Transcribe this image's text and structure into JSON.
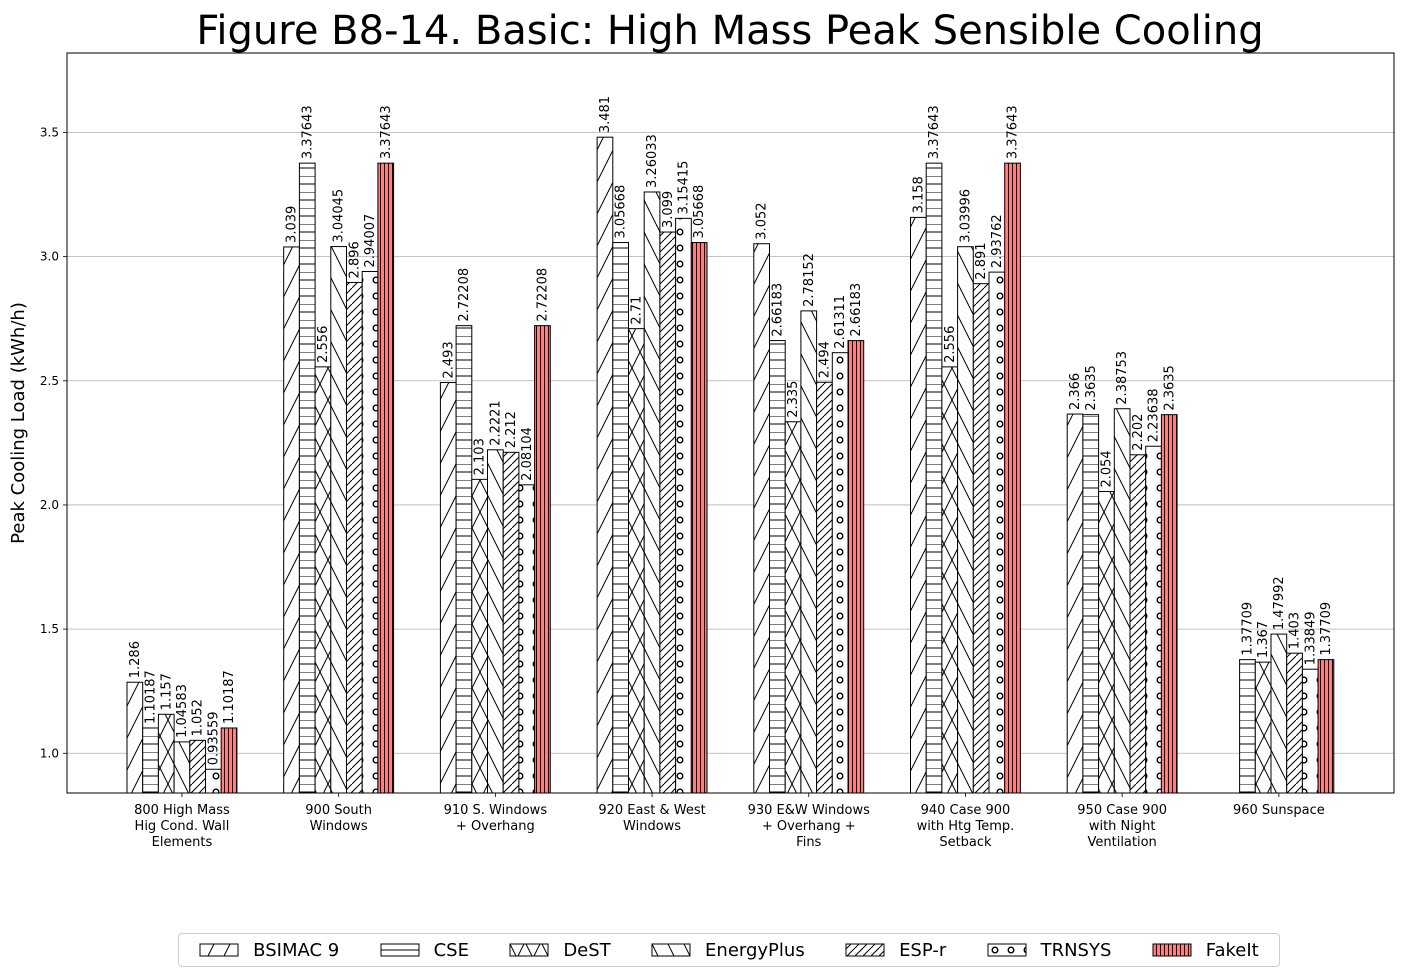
{
  "chart_data": {
    "type": "bar",
    "title": "Figure B8-14.  Basic: High Mass Peak Sensible Cooling",
    "ylabel": "Peak Cooling Load (kWh/h)",
    "xlabel": "",
    "ylim": [
      0.84,
      3.82
    ],
    "yticks": [
      "1.0",
      "1.5",
      "2.0",
      "2.5",
      "3.0",
      "3.5"
    ],
    "grid": "y",
    "legend_position": "bottom-center",
    "categories": [
      [
        "800 High Mass",
        "Hig Cond. Wall",
        "Elements"
      ],
      [
        "900 South",
        "Windows"
      ],
      [
        "910 S. Windows",
        "+ Overhang"
      ],
      [
        "920 East & West",
        "Windows"
      ],
      [
        "930 E&W Windows",
        "+ Overhang +",
        "Fins"
      ],
      [
        "940 Case 900",
        "with Htg Temp.",
        "Setback"
      ],
      [
        "950 Case 900",
        "with Night",
        "Ventilation"
      ],
      [
        "960 Sunspace"
      ]
    ],
    "series": [
      {
        "name": "BSIMAC 9",
        "hatch": "slash",
        "color": "#ffffff",
        "values": [
          1.286,
          3.039,
          2.493,
          3.481,
          3.052,
          3.158,
          2.366,
          null
        ],
        "labels": [
          "1.286",
          "3.039",
          "2.493",
          "3.481",
          "3.052",
          "3.158",
          "2.366",
          ""
        ]
      },
      {
        "name": "CSE",
        "hatch": "horizontal",
        "color": "#ffffff",
        "values": [
          1.10187,
          3.37643,
          2.72208,
          3.05668,
          2.66183,
          3.37643,
          2.3635,
          1.37709
        ],
        "labels": [
          "1.10187",
          "3.37643",
          "2.72208",
          "3.05668",
          "2.66183",
          "3.37643",
          "2.3635",
          "1.37709"
        ]
      },
      {
        "name": "DeST",
        "hatch": "cross",
        "color": "#ffffff",
        "values": [
          1.157,
          2.556,
          2.103,
          2.71,
          2.335,
          2.556,
          2.054,
          1.367
        ],
        "labels": [
          "1.157",
          "2.556",
          "2.103",
          "2.71",
          "2.335",
          "2.556",
          "2.054",
          "1.367"
        ]
      },
      {
        "name": "EnergyPlus",
        "hatch": "backslash",
        "color": "#ffffff",
        "values": [
          1.04583,
          3.04045,
          2.2221,
          3.26033,
          2.78152,
          3.03996,
          2.38753,
          1.47992
        ],
        "labels": [
          "1.04583",
          "3.04045",
          "2.2221",
          "3.26033",
          "2.78152",
          "3.03996",
          "2.38753",
          "1.47992"
        ]
      },
      {
        "name": "ESP-r",
        "hatch": "dense-slash",
        "color": "#ffffff",
        "values": [
          1.052,
          2.896,
          2.212,
          3.099,
          2.494,
          2.891,
          2.202,
          1.403
        ],
        "labels": [
          "1.052",
          "2.896",
          "2.212",
          "3.099",
          "2.494",
          "2.891",
          "2.202",
          "1.403"
        ]
      },
      {
        "name": "TRNSYS",
        "hatch": "circles",
        "color": "#ffffff",
        "values": [
          0.93559,
          2.94007,
          2.08104,
          3.15415,
          2.61311,
          2.93762,
          2.23638,
          1.33849
        ],
        "labels": [
          "0.93559",
          "2.94007",
          "2.08104",
          "3.15415",
          "2.61311",
          "2.93762",
          "2.23638",
          "1.33849"
        ]
      },
      {
        "name": "FakeIt",
        "hatch": "vertical",
        "color": "#ff7f7f",
        "values": [
          1.10187,
          3.37643,
          2.72208,
          3.05668,
          2.66183,
          3.37643,
          2.3635,
          1.37709
        ],
        "labels": [
          "1.10187",
          "3.37643",
          "2.72208",
          "3.05668",
          "2.66183",
          "3.37643",
          "2.3635",
          "1.37709"
        ]
      }
    ]
  }
}
